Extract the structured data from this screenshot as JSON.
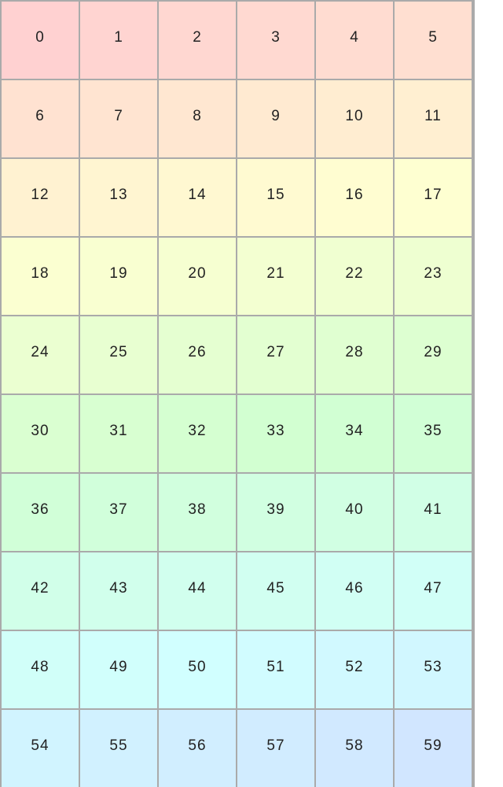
{
  "grid": {
    "columns": 6,
    "cells": [
      "0",
      "1",
      "2",
      "3",
      "4",
      "5",
      "6",
      "7",
      "8",
      "9",
      "10",
      "11",
      "12",
      "13",
      "14",
      "15",
      "16",
      "17",
      "18",
      "19",
      "20",
      "21",
      "22",
      "23",
      "24",
      "25",
      "26",
      "27",
      "28",
      "29",
      "30",
      "31",
      "32",
      "33",
      "34",
      "35",
      "36",
      "37",
      "38",
      "39",
      "40",
      "41",
      "42",
      "43",
      "44",
      "45",
      "46",
      "47",
      "48",
      "49",
      "50",
      "51",
      "52",
      "53",
      "54",
      "55",
      "56",
      "57",
      "58",
      "59"
    ],
    "border_color": "#aaaaaa",
    "color_start": "#ffd0d0",
    "color_end": "#d0e0ff"
  }
}
